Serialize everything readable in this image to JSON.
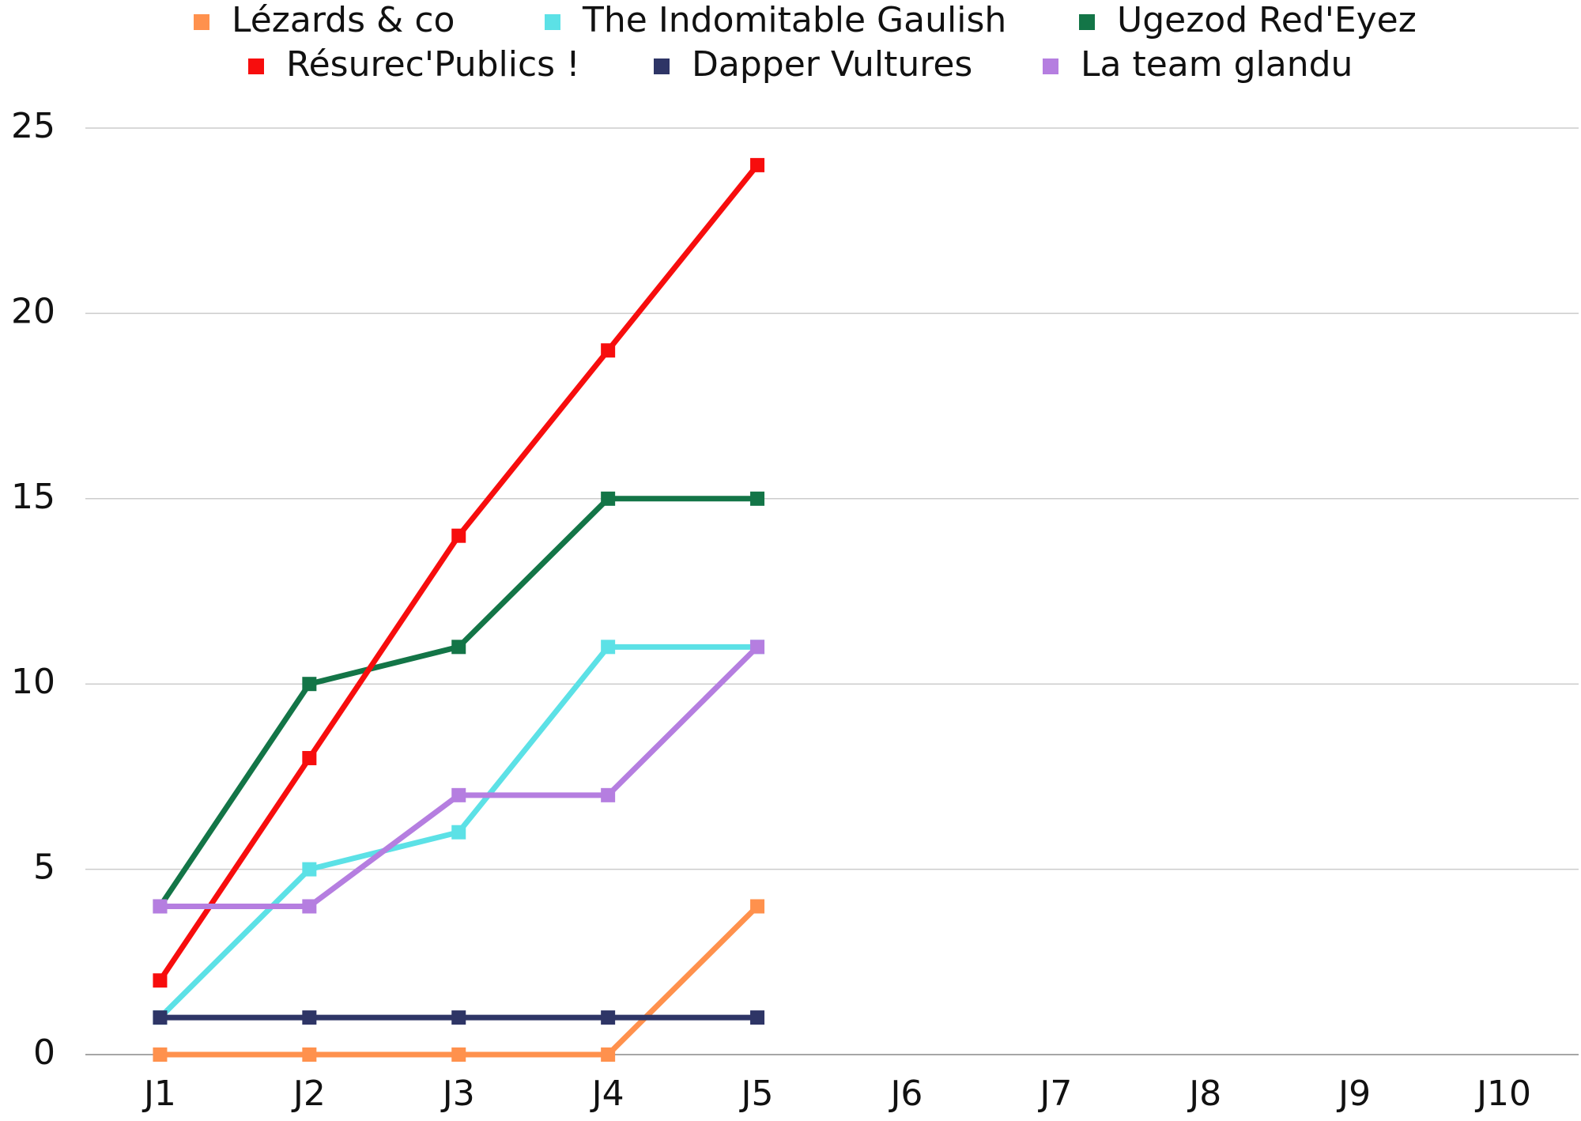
{
  "chart_data": {
    "type": "line",
    "categories": [
      "J1",
      "J2",
      "J3",
      "J4",
      "J5",
      "J6",
      "J7",
      "J8",
      "J9",
      "J10"
    ],
    "series": [
      {
        "name": "Lézards & co",
        "color": "#ff914d",
        "values": [
          0,
          0,
          0,
          0,
          4,
          null,
          null,
          null,
          null,
          null
        ]
      },
      {
        "name": "The Indomitable Gaulish",
        "color": "#5ce1e6",
        "values": [
          1,
          5,
          6,
          11,
          11,
          null,
          null,
          null,
          null,
          null
        ]
      },
      {
        "name": "Ugezod Red'Eyez",
        "color": "#137547",
        "values": [
          4,
          10,
          11,
          15,
          15,
          null,
          null,
          null,
          null,
          null
        ]
      },
      {
        "name": "Résurec'Publics !",
        "color": "#f70d0d",
        "values": [
          2,
          8,
          14,
          19,
          24,
          null,
          null,
          null,
          null,
          null
        ]
      },
      {
        "name": "Dapper Vultures",
        "color": "#2e3566",
        "values": [
          1,
          1,
          1,
          1,
          1,
          null,
          null,
          null,
          null,
          null
        ]
      },
      {
        "name": "La team glandu",
        "color": "#b57ee0",
        "values": [
          4,
          4,
          7,
          7,
          11,
          null,
          null,
          null,
          null,
          null
        ]
      }
    ],
    "ylim": [
      0,
      25
    ],
    "yticks": [
      0,
      5,
      10,
      15,
      20,
      25
    ],
    "grid": true,
    "legend": "top"
  }
}
